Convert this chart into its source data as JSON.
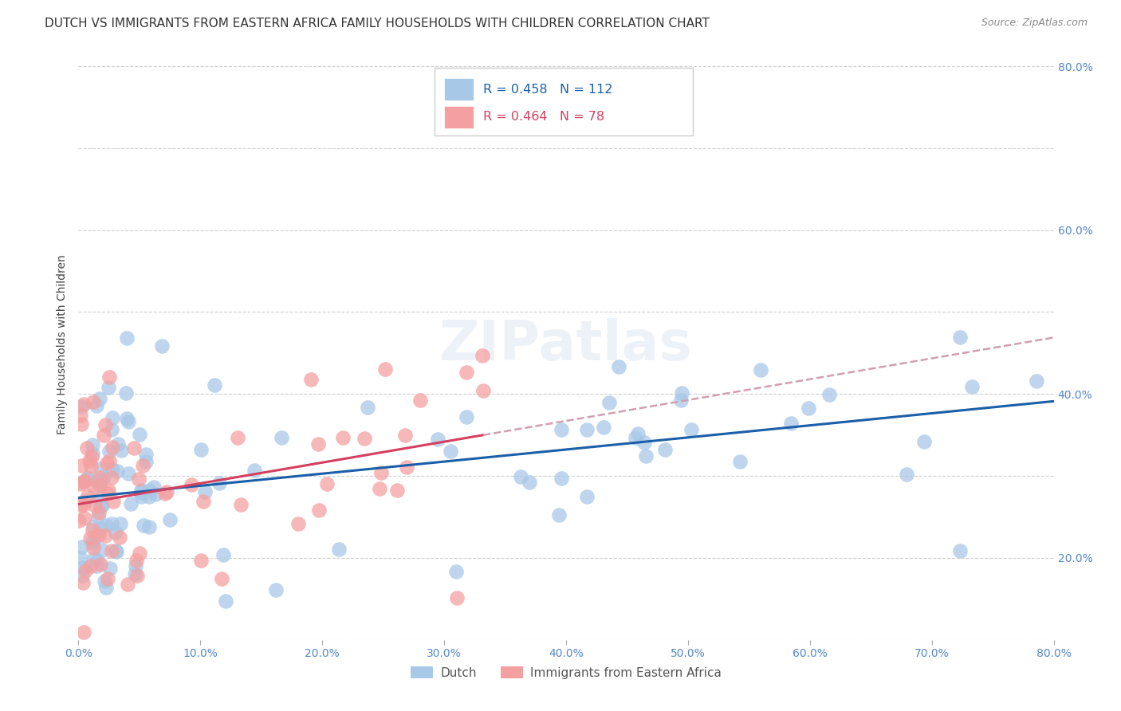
{
  "title": "DUTCH VS IMMIGRANTS FROM EASTERN AFRICA FAMILY HOUSEHOLDS WITH CHILDREN CORRELATION CHART",
  "source": "Source: ZipAtlas.com",
  "ylabel": "Family Households with Children",
  "dutch_color": "#a8c8e8",
  "immigrants_color": "#f4a0a0",
  "dutch_line_color": "#1a5fa8",
  "immigrants_line_color": "#d44060",
  "immigrants_dash_color": "#d0a0b0",
  "watermark": "ZIPatlas",
  "r_dutch": 0.458,
  "n_dutch": 112,
  "r_immigrants": 0.464,
  "n_immigrants": 78,
  "xmin": 0.0,
  "xmax": 0.8,
  "ymin": 0.1,
  "ymax": 0.82,
  "grid_color": "#d0d0d0",
  "background_color": "#ffffff",
  "title_fontsize": 11,
  "source_fontsize": 9,
  "axis_label_fontsize": 10,
  "tick_fontsize": 10,
  "legend_fontsize": 11
}
